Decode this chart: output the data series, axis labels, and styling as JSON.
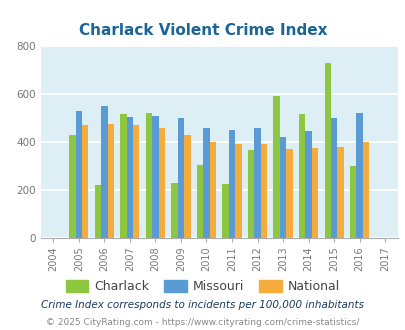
{
  "title": "Charlack Violent Crime Index",
  "years": [
    2004,
    2005,
    2006,
    2007,
    2008,
    2009,
    2010,
    2011,
    2012,
    2013,
    2014,
    2015,
    2016,
    2017
  ],
  "charlack": [
    null,
    430,
    220,
    515,
    520,
    230,
    305,
    225,
    365,
    590,
    515,
    730,
    300,
    null
  ],
  "missouri": [
    null,
    528,
    550,
    505,
    510,
    500,
    460,
    450,
    458,
    420,
    445,
    500,
    520,
    null
  ],
  "national": [
    null,
    470,
    475,
    472,
    458,
    428,
    400,
    390,
    390,
    370,
    375,
    380,
    400,
    null
  ],
  "charlack_color": "#8dc63f",
  "missouri_color": "#5b9bd5",
  "national_color": "#f4ad3d",
  "bg_color": "#deeef5",
  "ylim": [
    0,
    800
  ],
  "yticks": [
    0,
    200,
    400,
    600,
    800
  ],
  "legend_labels": [
    "Charlack",
    "Missouri",
    "National"
  ],
  "footnote1": "Crime Index corresponds to incidents per 100,000 inhabitants",
  "footnote2": "© 2025 CityRating.com - https://www.cityrating.com/crime-statistics/",
  "title_color": "#1a6496",
  "footnote1_color": "#1a3a5c",
  "footnote2_color": "#888888",
  "url_color": "#3366bb",
  "bar_width": 0.25,
  "grid_color": "#ffffff"
}
